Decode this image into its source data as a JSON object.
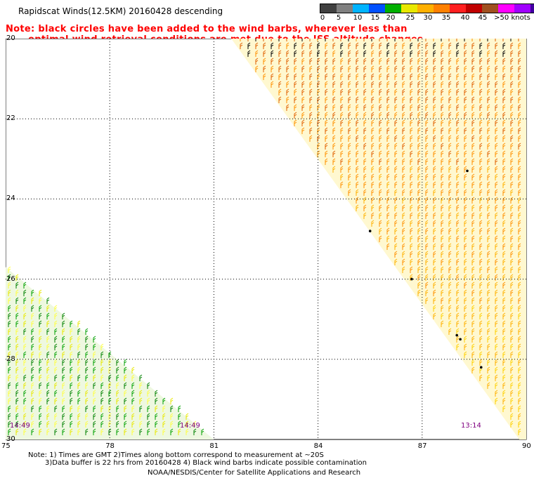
{
  "header": {
    "title": "Rapidscat Winds(12.5KM) 20160428 descending",
    "note_line1": "Note: black circles have been added to the wind barbs, wherever less than",
    "note_line2": "optimal wind retrieval conditions are met due to the ISS altitude changes."
  },
  "legend": {
    "labels": [
      "0",
      "5",
      "10",
      "15",
      "20",
      "25",
      "30",
      "35",
      "40",
      "45",
      ">50 knots"
    ],
    "colors": [
      "#404040",
      "#808080",
      "#00b4ff",
      "#0050ff",
      "#00b000",
      "#e8e800",
      "#ffb000",
      "#ff8000",
      "#ff2020",
      "#c00000",
      "#a05020",
      "#ff00ff",
      "#a000ff",
      "#4000a0"
    ]
  },
  "map": {
    "lat_labels": [
      "20",
      "22",
      "24",
      "26",
      "28",
      "30"
    ],
    "lon_labels": [
      "75",
      "78",
      "81",
      "84",
      "87",
      "90"
    ],
    "time_labels": [
      "14:49",
      "14:49",
      "13:14"
    ],
    "lon_range": [
      75,
      90
    ],
    "lat_range": [
      -20,
      -30
    ],
    "swaths": [
      {
        "name": "east-swath",
        "time": "13:14",
        "poly": [
          [
            81.5,
            -20
          ],
          [
            90,
            -20
          ],
          [
            90,
            -30
          ],
          [
            89.8,
            -30
          ]
        ]
      },
      {
        "name": "west-swath",
        "time": "14:49",
        "poly": [
          [
            75,
            -25.7
          ],
          [
            75,
            -30
          ],
          [
            81,
            -30
          ]
        ]
      }
    ]
  },
  "footer": {
    "note_line1": "Note: 1) Times are GMT 2)Times along bottom correspond to measurement at ~20S",
    "note_line2": "3)Data buffer is 22 hrs from 20160428 4) Black wind barbs indicate possible contamination",
    "credit": "NOAA/NESDIS/Center for Satellite Applications and Research"
  }
}
